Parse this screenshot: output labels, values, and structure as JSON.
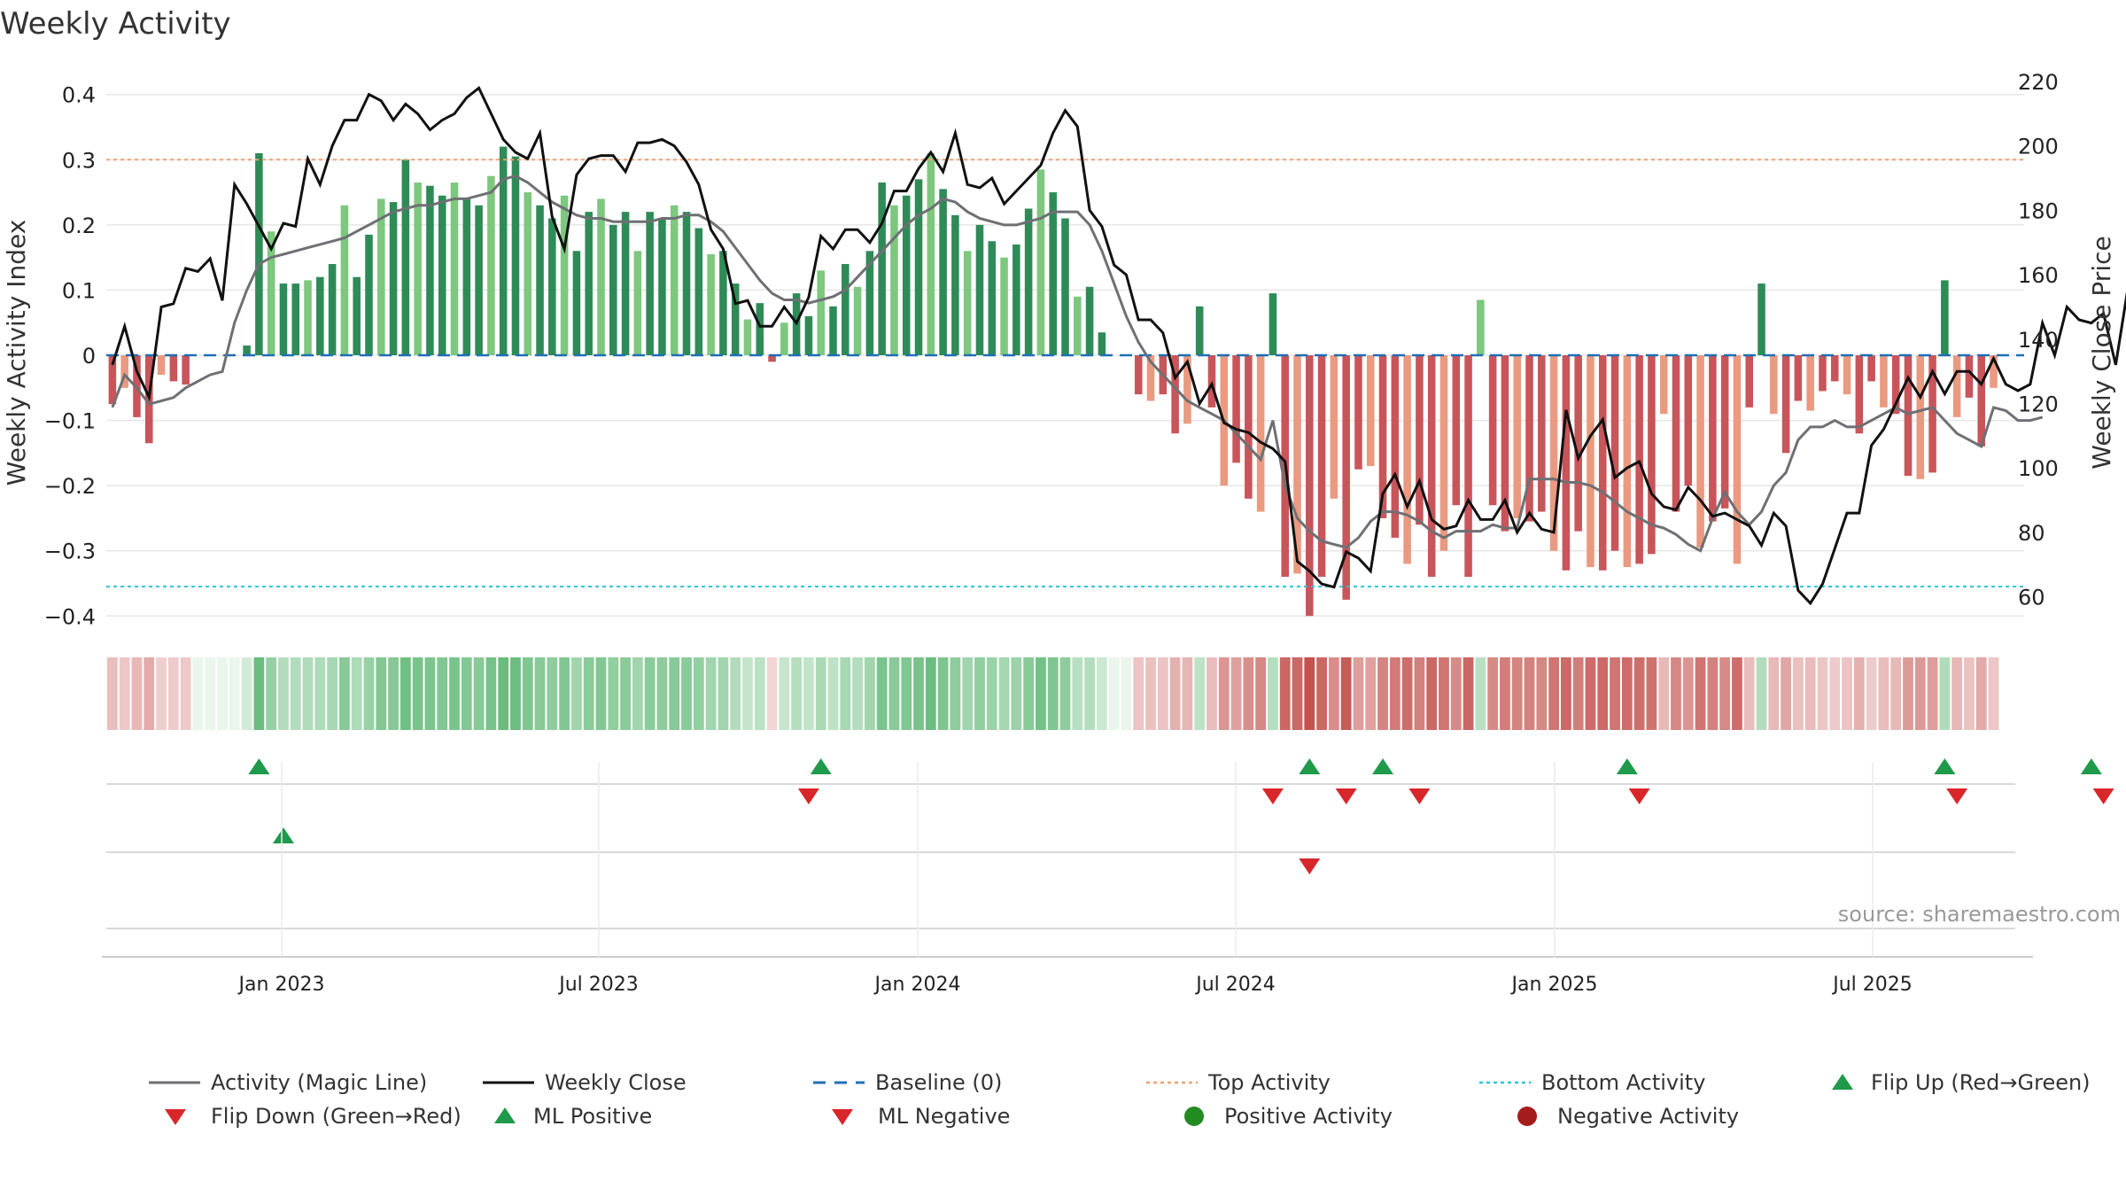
{
  "chart_data": {
    "type": "bar",
    "title": "Weekly Activity",
    "source": "source: sharemaestro.com",
    "ylabel_left": "Weekly Activity Index",
    "ylabel_right": "Weekly Close Price",
    "ylim_left": [
      -0.42,
      0.42
    ],
    "ylim_right": [
      50,
      220
    ],
    "yticks_left": [
      {
        "value": 0.4,
        "label": "0.4"
      },
      {
        "value": 0.3,
        "label": "0.3"
      },
      {
        "value": 0.2,
        "label": "0.2"
      },
      {
        "value": 0.1,
        "label": "0.1"
      },
      {
        "value": 0,
        "label": "0"
      },
      {
        "value": -0.1,
        "label": "−0.1"
      },
      {
        "value": -0.2,
        "label": "−0.2"
      },
      {
        "value": -0.3,
        "label": "−0.3"
      },
      {
        "value": -0.4,
        "label": "−0.4"
      }
    ],
    "yticks_right": [
      {
        "value": 220,
        "label": "220"
      },
      {
        "value": 200,
        "label": "200"
      },
      {
        "value": 180,
        "label": "180"
      },
      {
        "value": 160,
        "label": "160"
      },
      {
        "value": 140,
        "label": "140"
      },
      {
        "value": 120,
        "label": "120"
      },
      {
        "value": 100,
        "label": "100"
      },
      {
        "value": 80,
        "label": "80"
      },
      {
        "value": 60,
        "label": "60"
      }
    ],
    "xticks": [
      {
        "week": 34,
        "label": "Jan 2023"
      },
      {
        "week": 60,
        "label": "Jul 2023"
      },
      {
        "week": 86,
        "label": "Jan 2024"
      },
      {
        "week": 112,
        "label": "Jul 2024"
      },
      {
        "week": 138,
        "label": "Jan 2025"
      },
      {
        "week": 164,
        "label": "Jul 2025"
      }
    ],
    "week_count": 157,
    "reference_lines": {
      "top": 0.3,
      "bottom": -0.355,
      "baseline": 0
    },
    "activity_index": [
      -0.075,
      -0.05,
      -0.095,
      -0.135,
      -0.03,
      -0.04,
      -0.045,
      0,
      0,
      0,
      0,
      0.015,
      0.31,
      0.19,
      0.11,
      0.11,
      0.115,
      0.12,
      0.14,
      0.23,
      0.12,
      0.185,
      0.24,
      0.235,
      0.3,
      0.265,
      0.26,
      0.245,
      0.265,
      0.24,
      0.23,
      0.275,
      0.32,
      0.305,
      0.25,
      0.23,
      0.21,
      0.245,
      0.16,
      0.22,
      0.24,
      0.2,
      0.22,
      0.16,
      0.22,
      0.21,
      0.23,
      0.22,
      0.195,
      0.155,
      0.16,
      0.11,
      0.055,
      0.08,
      -0.01,
      0.05,
      0.095,
      0.06,
      0.13,
      0.075,
      0.14,
      0.105,
      0.16,
      0.265,
      0.23,
      0.245,
      0.27,
      0.31,
      0.255,
      0.215,
      0.16,
      0.2,
      0.175,
      0.15,
      0.17,
      0.225,
      0.285,
      0.25,
      0.21,
      0.09,
      0.105,
      0.035,
      0,
      0,
      -0.06,
      -0.07,
      -0.06,
      -0.12,
      -0.105,
      0.075,
      -0.08,
      -0.2,
      -0.165,
      -0.22,
      -0.24,
      0.095,
      -0.34,
      -0.335,
      -0.4,
      -0.34,
      -0.22,
      -0.375,
      -0.175,
      -0.17,
      -0.25,
      -0.28,
      -0.32,
      -0.26,
      -0.34,
      -0.3,
      -0.23,
      -0.34,
      0.085,
      -0.23,
      -0.27,
      -0.25,
      -0.255,
      -0.24,
      -0.3,
      -0.33,
      -0.27,
      -0.325,
      -0.33,
      -0.3,
      -0.325,
      -0.32,
      -0.305,
      -0.09,
      -0.24,
      -0.2,
      -0.295,
      -0.255,
      -0.235,
      -0.32,
      -0.08,
      0.11,
      -0.09,
      -0.15,
      -0.07,
      -0.085,
      -0.055,
      -0.04,
      -0.06,
      -0.12,
      -0.04,
      -0.08,
      -0.09,
      -0.185,
      -0.19,
      -0.18,
      0.115,
      -0.095,
      -0.065,
      -0.14,
      -0.05
    ],
    "magic_line": [
      -0.08,
      -0.03,
      -0.05,
      -0.075,
      -0.07,
      -0.065,
      -0.05,
      -0.04,
      -0.03,
      -0.025,
      0.05,
      0.1,
      0.14,
      0.15,
      0.155,
      0.16,
      0.165,
      0.17,
      0.175,
      0.18,
      0.19,
      0.2,
      0.21,
      0.22,
      0.225,
      0.23,
      0.23,
      0.235,
      0.24,
      0.24,
      0.245,
      0.25,
      0.27,
      0.275,
      0.265,
      0.25,
      0.235,
      0.225,
      0.215,
      0.21,
      0.21,
      0.205,
      0.205,
      0.205,
      0.205,
      0.21,
      0.21,
      0.215,
      0.215,
      0.205,
      0.19,
      0.165,
      0.14,
      0.115,
      0.095,
      0.085,
      0.085,
      0.08,
      0.085,
      0.09,
      0.1,
      0.12,
      0.14,
      0.16,
      0.18,
      0.2,
      0.215,
      0.225,
      0.24,
      0.235,
      0.22,
      0.21,
      0.205,
      0.2,
      0.2,
      0.205,
      0.21,
      0.22,
      0.22,
      0.22,
      0.2,
      0.16,
      0.11,
      0.06,
      0.02,
      -0.01,
      -0.03,
      -0.05,
      -0.07,
      -0.08,
      -0.09,
      -0.1,
      -0.12,
      -0.14,
      -0.16,
      -0.1,
      -0.2,
      -0.25,
      -0.27,
      -0.285,
      -0.29,
      -0.295,
      -0.28,
      -0.255,
      -0.24,
      -0.24,
      -0.245,
      -0.255,
      -0.27,
      -0.28,
      -0.27,
      -0.27,
      -0.27,
      -0.26,
      -0.265,
      -0.265,
      -0.19,
      -0.19,
      -0.19,
      -0.195,
      -0.195,
      -0.2,
      -0.21,
      -0.225,
      -0.24,
      -0.25,
      -0.26,
      -0.265,
      -0.275,
      -0.29,
      -0.3,
      -0.25,
      -0.21,
      -0.24,
      -0.26,
      -0.24,
      -0.2,
      -0.18,
      -0.13,
      -0.11,
      -0.11,
      -0.1,
      -0.11,
      -0.11,
      -0.1,
      -0.09,
      -0.08,
      -0.09,
      -0.085,
      -0.08,
      -0.1,
      -0.12,
      -0.13,
      -0.14,
      -0.08,
      -0.085,
      -0.1,
      -0.1,
      -0.095
    ],
    "weekly_close": [
      132,
      144,
      130,
      122,
      150,
      151,
      162,
      161,
      165,
      152,
      188,
      182,
      175,
      168,
      176,
      175,
      196,
      188,
      200,
      208,
      208,
      216,
      214,
      208,
      213,
      210,
      205,
      208,
      210,
      215,
      218,
      210,
      202,
      198,
      196,
      204,
      178,
      168,
      191,
      196,
      197,
      197,
      192,
      201,
      201,
      202,
      200,
      195,
      188,
      174,
      168,
      151,
      152,
      144,
      144,
      150,
      145,
      153,
      172,
      168,
      174,
      174,
      170,
      176,
      186,
      186,
      193,
      198,
      192,
      204,
      188,
      187,
      190,
      182,
      186,
      190,
      194,
      204,
      211,
      206,
      180,
      175,
      163,
      160,
      146,
      146,
      142,
      128,
      133,
      120,
      126,
      114,
      112,
      111,
      108,
      106,
      102,
      71,
      68,
      64,
      63,
      74,
      72,
      68,
      92,
      98,
      88,
      96,
      84,
      81,
      82,
      90,
      84,
      84,
      90,
      80,
      86,
      81,
      80,
      118,
      103,
      110,
      115,
      97,
      100,
      102,
      92,
      88,
      87,
      94,
      90,
      85,
      86,
      84,
      82,
      76,
      86,
      82,
      62,
      58,
      64,
      75,
      86,
      86,
      107,
      112,
      120,
      128,
      122,
      130,
      123,
      130,
      130,
      126,
      134,
      126,
      124,
      126,
      145,
      135,
      150,
      146,
      145,
      148,
      132,
      156
    ]
  },
  "flip_row1_up_labels": [
    "▲",
    "▲",
    "▲",
    "▲",
    "▲",
    "▲",
    "▲"
  ],
  "flip_row1_up_weeks": [
    13,
    59,
    99,
    105,
    125,
    151,
    163
  ],
  "flip_row1_down_weeks": [
    58,
    96,
    102,
    108,
    126,
    152,
    164
  ],
  "flip_row2_up_weeks": [
    15
  ],
  "flip_row2_down_weeks": [
    99
  ],
  "legend": [
    {
      "key": "magic",
      "label": "Activity (Magic Line)",
      "color": "#6e7074"
    },
    {
      "key": "close",
      "label": "Weekly Close",
      "color": "#111111"
    },
    {
      "key": "baseline",
      "label": "Baseline (0)",
      "color": "#1f6fb5"
    },
    {
      "key": "top",
      "label": "Top Activity",
      "color": "#f0a070"
    },
    {
      "key": "bottom",
      "label": "Bottom Activity",
      "color": "#2bc4d8"
    },
    {
      "key": "flip_up",
      "label": "Flip Up (Red→Green)",
      "color": "#1e9a4a"
    },
    {
      "key": "flip_down",
      "label": "Flip Down (Green→Red)",
      "color": "#d9262b"
    },
    {
      "key": "ml_pos",
      "label": "ML Positive",
      "color": "#1e9a4a"
    },
    {
      "key": "ml_neg",
      "label": "ML Negative",
      "color": "#d9262b"
    },
    {
      "key": "pos_act",
      "label": "Positive Activity",
      "color": "#228b22"
    },
    {
      "key": "neg_act",
      "label": "Negative Activity",
      "color": "#a51c1c"
    }
  ],
  "colors": {
    "green_dark": "#2e8b57",
    "green_light": "#7ec77e",
    "red_dark": "#c8555a",
    "red_light": "#ea9a80",
    "grid": "#e6e6e6",
    "axis": "#cccccc",
    "text": "#222222"
  }
}
